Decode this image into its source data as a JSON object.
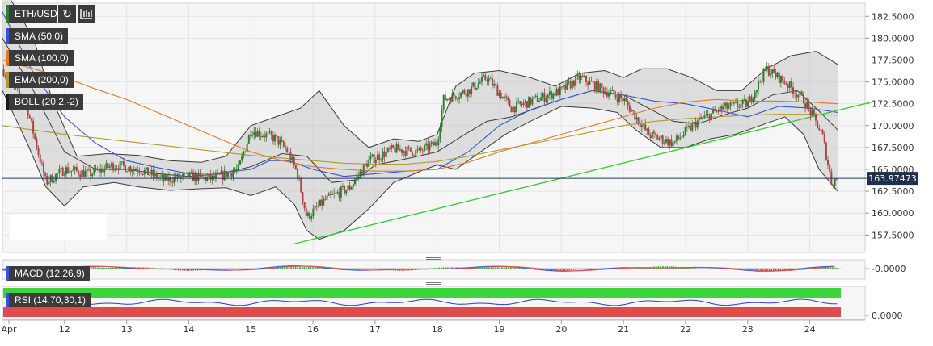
{
  "symbol": "ETH/USD",
  "colors": {
    "up": "#2e7d32",
    "down": "#a94446",
    "sma50": "#3455d6",
    "sma100": "#e07a28",
    "ema200": "#b49a2a",
    "boll": "#3a3a3a",
    "trend": "#33cc33",
    "price_line": "#1f3a66"
  },
  "chart_data": [
    {
      "type": "candlestick",
      "title": "ETH/USD",
      "x_ticks": [
        "Apr",
        "12",
        "13",
        "14",
        "15",
        "16",
        "17",
        "18",
        "19",
        "20",
        "21",
        "22",
        "23",
        "24"
      ],
      "x_range": [
        11.0,
        24.5
      ],
      "y_ticks": [
        157.5,
        160.0,
        162.5,
        165.0,
        167.5,
        170.0,
        172.5,
        175.0,
        177.5,
        180.0,
        182.5
      ],
      "ylim": [
        155.5,
        184.0
      ],
      "last_price": "163.97473",
      "last_price_value": 163.97473,
      "grid": true,
      "legend": [
        {
          "label": "ETH/USD"
        },
        {
          "label": "SMA (50,0)",
          "color": "#3455d6"
        },
        {
          "label": "SMA (100,0)",
          "color": "#e07a28"
        },
        {
          "label": "EMA (200,0)",
          "color": "#b49a2a"
        },
        {
          "label": "BOLL (20,2,-2)",
          "color": "#3a3a3a"
        }
      ],
      "price_path": [
        [
          11.0,
          176.5
        ],
        [
          11.4,
          172.0
        ],
        [
          11.7,
          163.5
        ],
        [
          12.0,
          165.0
        ],
        [
          12.4,
          164.5
        ],
        [
          12.8,
          165.5
        ],
        [
          13.2,
          165.0
        ],
        [
          13.6,
          163.8
        ],
        [
          14.0,
          164.2
        ],
        [
          14.4,
          163.9
        ],
        [
          14.8,
          165.0
        ],
        [
          15.0,
          169.5
        ],
        [
          15.4,
          168.5
        ],
        [
          15.6,
          167.0
        ],
        [
          15.75,
          164.5
        ],
        [
          15.9,
          159.5
        ],
        [
          16.2,
          161.5
        ],
        [
          16.6,
          163.0
        ],
        [
          16.9,
          166.0
        ],
        [
          17.3,
          167.3
        ],
        [
          17.7,
          167.0
        ],
        [
          18.0,
          168.0
        ],
        [
          18.1,
          173.0
        ],
        [
          18.5,
          174.0
        ],
        [
          18.8,
          175.5
        ],
        [
          19.2,
          172.0
        ],
        [
          19.6,
          173.0
        ],
        [
          20.0,
          174.0
        ],
        [
          20.3,
          175.5
        ],
        [
          20.7,
          174.0
        ],
        [
          21.0,
          173.0
        ],
        [
          21.4,
          169.0
        ],
        [
          21.8,
          168.0
        ],
        [
          22.2,
          170.5
        ],
        [
          22.6,
          172.0
        ],
        [
          23.0,
          172.5
        ],
        [
          23.3,
          176.5
        ],
        [
          23.6,
          175.0
        ],
        [
          23.9,
          173.0
        ],
        [
          24.2,
          169.0
        ],
        [
          24.35,
          163.5
        ],
        [
          24.45,
          164.0
        ]
      ],
      "series": [
        {
          "name": "SMA (50,0)",
          "type": "line",
          "points": [
            [
              11.0,
              183.0
            ],
            [
              11.5,
              176.0
            ],
            [
              12.0,
              171.0
            ],
            [
              12.5,
              168.0
            ],
            [
              13.0,
              166.0
            ],
            [
              13.5,
              165.2
            ],
            [
              14.0,
              164.5
            ],
            [
              14.5,
              164.6
            ],
            [
              15.0,
              165.0
            ],
            [
              15.3,
              166.0
            ],
            [
              15.6,
              166.0
            ],
            [
              16.0,
              165.0
            ],
            [
              16.5,
              164.2
            ],
            [
              17.0,
              164.5
            ],
            [
              17.5,
              164.8
            ],
            [
              18.0,
              165.0
            ],
            [
              18.5,
              167.0
            ],
            [
              19.0,
              170.0
            ],
            [
              19.5,
              171.8
            ],
            [
              20.0,
              173.0
            ],
            [
              20.5,
              174.0
            ],
            [
              21.0,
              173.5
            ],
            [
              21.5,
              172.8
            ],
            [
              22.0,
              172.5
            ],
            [
              22.5,
              171.8
            ],
            [
              23.0,
              171.0
            ],
            [
              23.5,
              172.2
            ],
            [
              24.0,
              172.0
            ],
            [
              24.45,
              171.5
            ]
          ]
        },
        {
          "name": "SMA (100,0)",
          "type": "line",
          "points": [
            [
              11.0,
              177.5
            ],
            [
              11.5,
              176.5
            ],
            [
              12.0,
              175.5
            ],
            [
              12.5,
              174.2
            ],
            [
              13.0,
              173.0
            ],
            [
              13.5,
              171.5
            ],
            [
              14.0,
              170.0
            ],
            [
              14.5,
              168.5
            ],
            [
              15.0,
              167.0
            ],
            [
              15.5,
              166.0
            ],
            [
              16.0,
              165.3
            ],
            [
              16.5,
              165.0
            ],
            [
              17.0,
              164.8
            ],
            [
              17.5,
              164.8
            ],
            [
              18.0,
              165.0
            ],
            [
              18.5,
              165.8
            ],
            [
              19.0,
              167.0
            ],
            [
              19.5,
              168.0
            ],
            [
              20.0,
              169.0
            ],
            [
              20.5,
              170.0
            ],
            [
              21.0,
              171.0
            ],
            [
              21.5,
              172.0
            ],
            [
              22.0,
              172.7
            ],
            [
              22.5,
              173.0
            ],
            [
              23.0,
              172.8
            ],
            [
              23.5,
              172.8
            ],
            [
              24.0,
              172.7
            ],
            [
              24.45,
              172.5
            ]
          ]
        },
        {
          "name": "EMA (200,0)",
          "type": "line",
          "points": [
            [
              11.0,
              170.0
            ],
            [
              11.5,
              169.5
            ],
            [
              12.0,
              169.0
            ],
            [
              12.5,
              168.6
            ],
            [
              13.0,
              168.2
            ],
            [
              13.5,
              167.8
            ],
            [
              14.0,
              167.4
            ],
            [
              14.5,
              167.0
            ],
            [
              15.0,
              166.6
            ],
            [
              15.5,
              166.3
            ],
            [
              16.0,
              166.0
            ],
            [
              16.5,
              165.7
            ],
            [
              17.0,
              165.6
            ],
            [
              17.5,
              165.6
            ],
            [
              18.0,
              165.9
            ],
            [
              18.5,
              166.5
            ],
            [
              19.0,
              167.2
            ],
            [
              19.5,
              167.9
            ],
            [
              20.0,
              168.6
            ],
            [
              20.5,
              169.3
            ],
            [
              21.0,
              170.0
            ],
            [
              21.5,
              170.5
            ],
            [
              22.0,
              170.8
            ],
            [
              22.5,
              171.0
            ],
            [
              23.0,
              171.2
            ],
            [
              23.5,
              171.3
            ],
            [
              24.0,
              171.3
            ],
            [
              24.45,
              171.2
            ]
          ]
        },
        {
          "name": "BOLL (20,2,-2)",
          "type": "band",
          "upper": [
            [
              11.0,
              186.0
            ],
            [
              11.5,
              180.0
            ],
            [
              11.8,
              173.0
            ],
            [
              12.2,
              166.5
            ],
            [
              12.7,
              166.8
            ],
            [
              13.2,
              166.6
            ],
            [
              13.7,
              166.0
            ],
            [
              14.2,
              165.8
            ],
            [
              14.6,
              166.5
            ],
            [
              15.0,
              170.0
            ],
            [
              15.4,
              171.0
            ],
            [
              15.8,
              172.0
            ],
            [
              16.1,
              174.0
            ],
            [
              16.5,
              170.0
            ],
            [
              16.9,
              167.5
            ],
            [
              17.3,
              168.5
            ],
            [
              17.7,
              168.2
            ],
            [
              18.0,
              169.0
            ],
            [
              18.3,
              174.5
            ],
            [
              18.6,
              176.0
            ],
            [
              19.0,
              176.3
            ],
            [
              19.5,
              175.5
            ],
            [
              19.9,
              174.5
            ],
            [
              20.3,
              176.0
            ],
            [
              20.7,
              176.3
            ],
            [
              21.0,
              175.5
            ],
            [
              21.3,
              176.5
            ],
            [
              21.7,
              176.5
            ],
            [
              22.1,
              175.5
            ],
            [
              22.5,
              174.0
            ],
            [
              22.9,
              174.0
            ],
            [
              23.3,
              176.5
            ],
            [
              23.7,
              178.0
            ],
            [
              24.1,
              178.5
            ],
            [
              24.45,
              177.0
            ]
          ],
          "middle": [
            [
              11.0,
              180.0
            ],
            [
              11.5,
              174.0
            ],
            [
              12.0,
              167.0
            ],
            [
              12.5,
              165.0
            ],
            [
              13.0,
              165.0
            ],
            [
              13.5,
              164.5
            ],
            [
              14.0,
              164.2
            ],
            [
              14.5,
              164.5
            ],
            [
              15.0,
              165.3
            ],
            [
              15.5,
              166.8
            ],
            [
              15.9,
              166.5
            ],
            [
              16.3,
              163.5
            ],
            [
              16.7,
              163.8
            ],
            [
              17.0,
              165.5
            ],
            [
              17.5,
              166.2
            ],
            [
              18.0,
              167.0
            ],
            [
              18.4,
              168.8
            ],
            [
              18.8,
              170.5
            ],
            [
              19.2,
              171.0
            ],
            [
              19.6,
              172.0
            ],
            [
              20.0,
              173.0
            ],
            [
              20.5,
              174.0
            ],
            [
              21.0,
              173.5
            ],
            [
              21.4,
              172.0
            ],
            [
              21.8,
              170.5
            ],
            [
              22.2,
              170.2
            ],
            [
              22.6,
              171.2
            ],
            [
              23.0,
              172.0
            ],
            [
              23.4,
              173.5
            ],
            [
              23.8,
              174.0
            ],
            [
              24.1,
              172.0
            ],
            [
              24.45,
              169.5
            ]
          ],
          "lower": [
            [
              11.0,
              174.0
            ],
            [
              11.4,
              168.0
            ],
            [
              11.7,
              163.0
            ],
            [
              12.0,
              160.8
            ],
            [
              12.3,
              163.0
            ],
            [
              12.8,
              163.5
            ],
            [
              13.2,
              163.0
            ],
            [
              13.7,
              162.6
            ],
            [
              14.2,
              162.8
            ],
            [
              14.6,
              162.9
            ],
            [
              15.0,
              162.0
            ],
            [
              15.4,
              163.0
            ],
            [
              15.7,
              161.0
            ],
            [
              15.9,
              158.0
            ],
            [
              16.1,
              157.0
            ],
            [
              16.5,
              158.0
            ],
            [
              16.9,
              160.5
            ],
            [
              17.3,
              163.5
            ],
            [
              17.8,
              165.0
            ],
            [
              18.0,
              165.5
            ],
            [
              18.3,
              165.0
            ],
            [
              18.7,
              167.0
            ],
            [
              19.1,
              169.0
            ],
            [
              19.5,
              170.5
            ],
            [
              20.0,
              172.2
            ],
            [
              20.5,
              172.0
            ],
            [
              20.9,
              171.5
            ],
            [
              21.2,
              169.5
            ],
            [
              21.6,
              167.5
            ],
            [
              22.0,
              167.5
            ],
            [
              22.4,
              168.5
            ],
            [
              22.8,
              169.0
            ],
            [
              23.2,
              170.0
            ],
            [
              23.6,
              171.0
            ],
            [
              23.9,
              169.0
            ],
            [
              24.15,
              165.0
            ],
            [
              24.45,
              162.5
            ]
          ]
        },
        {
          "name": "trend",
          "type": "line",
          "points": [
            [
              15.7,
              156.5
            ],
            [
              25.0,
              172.7
            ]
          ]
        }
      ]
    },
    {
      "type": "line",
      "title": "MACD (12,26,9)",
      "y_ticks": [
        0.0
      ],
      "y_tick_labels": [
        "-0.0000"
      ],
      "zero_line": true
    },
    {
      "type": "line",
      "title": "RSI (14,70,30,1)",
      "y_ticks": [
        0.0
      ],
      "y_tick_labels": [
        "0.0000"
      ],
      "bands": {
        "overbought_color": "#3cd63c",
        "oversold_color": "#e04b4b"
      }
    }
  ]
}
